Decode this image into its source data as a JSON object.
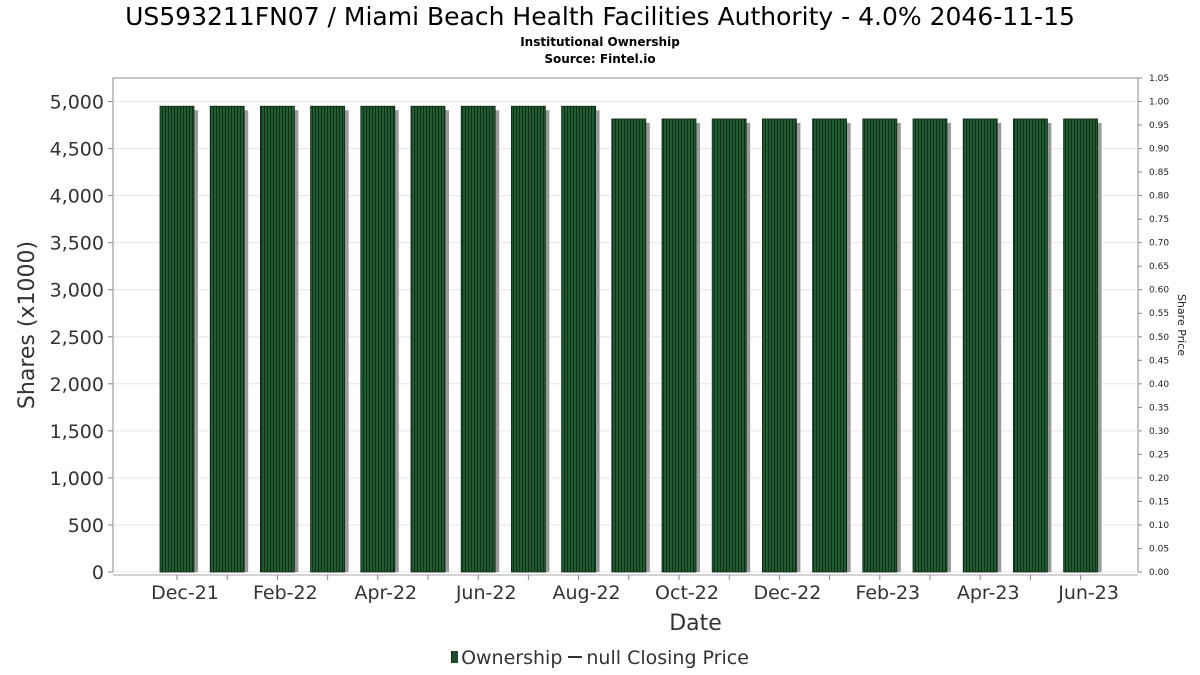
{
  "header": {
    "title": "US593211FN07 / Miami Beach Health Facilities Authority - 4.0% 2046-11-15",
    "subtitle1": "Institutional Ownership",
    "subtitle2": "Source: Fintel.io"
  },
  "legend": {
    "ownership_label": "Ownership",
    "price_label": "null Closing Price",
    "ownership_color": "#1e4d2b",
    "price_color": "#333333"
  },
  "chart_data": {
    "type": "bar",
    "xlabel": "Date",
    "ylabel": "Shares (x1000)",
    "y2label": "Share Price",
    "categories": [
      "Dec-21",
      "Jan-22",
      "Feb-22",
      "Mar-22",
      "Apr-22",
      "May-22",
      "Jun-22",
      "Jul-22",
      "Aug-22",
      "Sep-22",
      "Oct-22",
      "Nov-22",
      "Dec-22",
      "Jan-23",
      "Feb-23",
      "Mar-23",
      "Apr-23",
      "May-23",
      "Jun-23"
    ],
    "tick_labels": [
      "Dec-21",
      "Feb-22",
      "Apr-22",
      "Jun-22",
      "Aug-22",
      "Oct-22",
      "Dec-22",
      "Feb-23",
      "Apr-23",
      "Jun-23"
    ],
    "series": [
      {
        "name": "Ownership",
        "values": [
          4950,
          4950,
          4950,
          4950,
          4950,
          4950,
          4950,
          4950,
          4950,
          4815,
          4815,
          4815,
          4815,
          4815,
          4815,
          4815,
          4815,
          4815,
          4815
        ]
      }
    ],
    "ylim": [
      0,
      5000
    ],
    "yticks": [
      0,
      500,
      1000,
      1500,
      2000,
      2500,
      3000,
      3500,
      4000,
      4500,
      5000
    ],
    "y2lim": [
      0,
      1.05
    ],
    "y2ticks": [
      "0.00",
      "0.05",
      "0.10",
      "0.15",
      "0.20",
      "0.25",
      "0.30",
      "0.35",
      "0.40",
      "0.45",
      "0.50",
      "0.55",
      "0.60",
      "0.65",
      "0.70",
      "0.75",
      "0.80",
      "0.85",
      "0.90",
      "0.95",
      "1.00",
      "1.05"
    ],
    "grid": true,
    "legend_position": "bottom"
  }
}
